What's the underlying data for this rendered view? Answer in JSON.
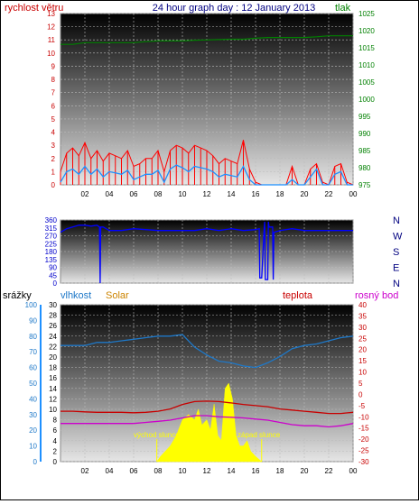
{
  "title": "24 hour graph day : 12 January 2013",
  "colors": {
    "wind_gust": "#ff0000",
    "wind_avg": "#1e90ff",
    "pressure": "#008000",
    "direction": "#0000ff",
    "humidity": "#1e78c8",
    "temperature": "#c80000",
    "dewpoint": "#cc00cc",
    "solar": "#ffff00",
    "rain_axis": "#1e90ff",
    "solar_label": "#cc8400",
    "grid": "#bbbbbb"
  },
  "time_ticks": [
    "02",
    "04",
    "06",
    "08",
    "10",
    "12",
    "14",
    "16",
    "18",
    "20",
    "22",
    "00"
  ],
  "chart_data": [
    {
      "type": "line",
      "left_label": "rychlost větru",
      "right_label": "tlak",
      "left_ticks": [
        "0",
        "1",
        "2",
        "3",
        "4",
        "5",
        "6",
        "7",
        "8",
        "9",
        "10",
        "11",
        "12",
        "13"
      ],
      "right_ticks": [
        "975",
        "980",
        "985",
        "990",
        "995",
        "1000",
        "1005",
        "1010",
        "1015",
        "1020",
        "1025"
      ],
      "ylim_left": [
        0,
        13
      ],
      "ylim_right": [
        975,
        1025
      ],
      "x_range_hours": [
        0,
        24
      ],
      "series": [
        {
          "key": "gust",
          "x": [
            0,
            0.5,
            1,
            1.5,
            2,
            2.5,
            3,
            3.5,
            4,
            4.5,
            5,
            5.5,
            6,
            6.5,
            7,
            7.5,
            8,
            8.5,
            9,
            9.5,
            10,
            10.5,
            11,
            11.5,
            12,
            12.5,
            13,
            13.5,
            14,
            14.5,
            15,
            15.5,
            16,
            16.5,
            17,
            17.5,
            18,
            18.5,
            19,
            19.5,
            20,
            20.5,
            21,
            21.5,
            22,
            22.5,
            23,
            23.5,
            24
          ],
          "y": [
            1.0,
            2.4,
            2.8,
            2.2,
            3.2,
            2.0,
            2.6,
            1.8,
            2.4,
            2.2,
            2.0,
            2.6,
            1.4,
            1.6,
            2.0,
            2.0,
            2.6,
            1.0,
            2.6,
            3.0,
            2.8,
            2.4,
            3.0,
            2.8,
            2.6,
            2.2,
            1.6,
            2.0,
            1.8,
            1.6,
            3.4,
            1.2,
            0.2,
            0.0,
            0.0,
            0.0,
            0.0,
            0.0,
            1.4,
            0.0,
            0.0,
            1.2,
            1.6,
            0.2,
            0.0,
            1.4,
            1.6,
            0.2,
            0.0
          ]
        },
        {
          "key": "average",
          "x": [
            0,
            0.5,
            1,
            1.5,
            2,
            2.5,
            3,
            3.5,
            4,
            4.5,
            5,
            5.5,
            6,
            6.5,
            7,
            7.5,
            8,
            8.5,
            9,
            9.5,
            10,
            10.5,
            11,
            11.5,
            12,
            12.5,
            13,
            13.5,
            14,
            14.5,
            15,
            15.5,
            16,
            16.5,
            17,
            17.5,
            18,
            18.5,
            19,
            19.5,
            20,
            20.5,
            21,
            21.5,
            22,
            22.5,
            23,
            23.5,
            24
          ],
          "y": [
            0.2,
            1.0,
            1.2,
            0.8,
            1.4,
            0.8,
            1.2,
            0.6,
            1.0,
            0.9,
            0.8,
            1.1,
            0.4,
            0.6,
            0.8,
            0.8,
            1.1,
            0.2,
            1.2,
            1.5,
            1.3,
            1.0,
            1.4,
            1.3,
            1.2,
            1.0,
            0.6,
            0.8,
            0.7,
            0.6,
            1.4,
            0.4,
            0.0,
            0.0,
            0.0,
            0.0,
            0.0,
            0.0,
            0.4,
            0.0,
            0.0,
            0.6,
            1.2,
            0.0,
            0.0,
            0.8,
            1.0,
            0.0,
            0.0
          ]
        },
        {
          "key": "pressure",
          "x": [
            0,
            1,
            2,
            3,
            4,
            5,
            6,
            7,
            8,
            9,
            10,
            11,
            12,
            13,
            14,
            15,
            16,
            17,
            18,
            19,
            20,
            21,
            22,
            23,
            24
          ],
          "y": [
            1016.0,
            1016.0,
            1016.5,
            1016.5,
            1016.5,
            1016.5,
            1016.5,
            1016.8,
            1017.0,
            1017.0,
            1017.0,
            1017.2,
            1017.3,
            1017.4,
            1017.5,
            1017.5,
            1017.8,
            1018.0,
            1018.0,
            1018.0,
            1018.0,
            1018.2,
            1018.5,
            1018.5,
            1018.5
          ]
        }
      ]
    },
    {
      "type": "line",
      "left_ticks": [
        "0",
        "45",
        "90",
        "135",
        "180",
        "225",
        "270",
        "315",
        "360"
      ],
      "right_ticks": [
        "N",
        "E",
        "S",
        "W",
        "N"
      ],
      "ylim": [
        0,
        360
      ],
      "series": [
        {
          "key": "direction",
          "x": [
            0,
            0.5,
            1,
            1.5,
            2,
            2.5,
            3,
            3.2,
            3.25,
            3.3,
            3.5,
            4,
            5,
            6,
            7,
            8,
            9,
            10,
            11,
            12,
            13,
            14,
            15,
            16,
            16.3,
            16.35,
            16.5,
            16.7,
            16.75,
            16.8,
            17,
            17.05,
            17.1,
            17.4,
            17.45,
            17.5,
            18,
            19,
            20,
            21,
            22,
            23,
            24
          ],
          "y": [
            290,
            310,
            320,
            330,
            330,
            325,
            330,
            320,
            0,
            320,
            320,
            300,
            300,
            310,
            305,
            300,
            300,
            300,
            300,
            310,
            300,
            310,
            300,
            305,
            310,
            30,
            30,
            300,
            350,
            20,
            20,
            350,
            320,
            320,
            20,
            290,
            300,
            310,
            300,
            300,
            300,
            300,
            300
          ]
        }
      ]
    },
    {
      "type": "line",
      "left_label": "srážky",
      "left2_label": "vlhkost",
      "solar_label": "Solar",
      "right_label": "teplota",
      "right2_label": "rosný bod",
      "rain_ticks": [
        "0",
        "10",
        "20",
        "30",
        "40",
        "50",
        "60",
        "70",
        "80",
        "90",
        "100"
      ],
      "solar_ticks": [
        "0",
        "2",
        "4",
        "6",
        "8",
        "10",
        "12",
        "14",
        "16",
        "18",
        "20",
        "22",
        "24",
        "26",
        "28",
        "30"
      ],
      "temp_ticks": [
        "-30",
        "-25",
        "-20",
        "-15",
        "-10",
        "-5",
        "0",
        "5",
        "10",
        "15",
        "20",
        "25",
        "30",
        "35",
        "40"
      ],
      "ylim_humidity": [
        0,
        100
      ],
      "ylim_temperature": [
        -30,
        40
      ],
      "annotations": [
        {
          "text": "východ slunce",
          "x": 7.9
        },
        {
          "text": "západ slunce",
          "x": 16.5
        }
      ],
      "series": [
        {
          "key": "humidity",
          "x": [
            0,
            1,
            2,
            3,
            4,
            5,
            6,
            7,
            8,
            9,
            10,
            11,
            12,
            13,
            14,
            15,
            16,
            17,
            18,
            19,
            20,
            21,
            22,
            23,
            24
          ],
          "y": [
            74,
            74,
            74,
            76,
            76,
            77,
            78,
            79,
            80,
            80,
            81,
            73,
            68,
            64,
            63,
            61,
            60,
            63,
            67,
            72,
            74,
            75,
            77,
            79,
            80
          ]
        },
        {
          "key": "temperature",
          "x": [
            0,
            1,
            2,
            3,
            4,
            5,
            6,
            7,
            8,
            9,
            10,
            11,
            12,
            13,
            14,
            15,
            16,
            17,
            18,
            19,
            20,
            21,
            22,
            23,
            24
          ],
          "y": [
            -7.5,
            -7.5,
            -7.8,
            -8.0,
            -8.0,
            -8.0,
            -8.2,
            -8.0,
            -7.5,
            -6.5,
            -4.5,
            -3.2,
            -3.0,
            -3.2,
            -3.8,
            -4.5,
            -5.0,
            -5.5,
            -6.5,
            -7.0,
            -7.5,
            -8.0,
            -8.5,
            -8.5,
            -8.0
          ]
        },
        {
          "key": "dewpoint",
          "x": [
            0,
            1,
            2,
            3,
            4,
            5,
            6,
            7,
            8,
            9,
            10,
            11,
            12,
            13,
            14,
            15,
            16,
            17,
            18,
            19,
            20,
            21,
            22,
            23,
            24
          ],
          "y": [
            -13.0,
            -13.0,
            -13.0,
            -13.0,
            -13.0,
            -13.0,
            -13.0,
            -12.5,
            -12.0,
            -11.5,
            -10.5,
            -9.5,
            -9.5,
            -10.0,
            -10.2,
            -10.5,
            -11.0,
            -11.5,
            -12.5,
            -13.5,
            -14.0,
            -14.0,
            -14.5,
            -14.0,
            -13.0
          ]
        },
        {
          "key": "solar",
          "x": [
            7.9,
            8.2,
            8.6,
            9.0,
            9.5,
            10.0,
            10.5,
            11.0,
            11.3,
            11.6,
            12.0,
            12.3,
            12.6,
            12.9,
            13.2,
            13.5,
            13.8,
            14.1,
            14.4,
            14.7,
            15.0,
            15.3,
            15.6,
            16.0,
            16.5
          ],
          "y": [
            0,
            1,
            2,
            3,
            5,
            8,
            9,
            8,
            10,
            7,
            8,
            6,
            11,
            5,
            4,
            14,
            15,
            12,
            5,
            3,
            3,
            4,
            2,
            1,
            0
          ]
        }
      ]
    }
  ]
}
